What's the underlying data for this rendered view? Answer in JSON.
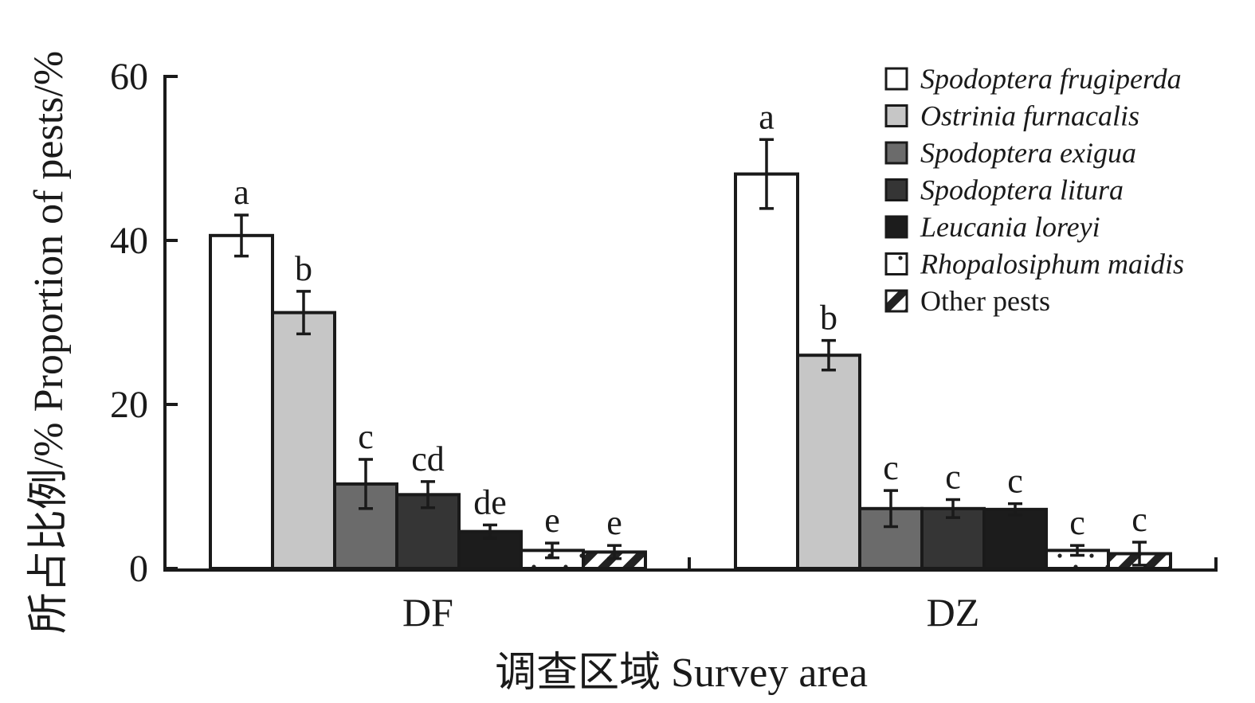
{
  "chart_data": {
    "type": "bar",
    "xlabel": "调查区域 Survey area",
    "ylabel": "所占比例/% Proportion of pests/%",
    "ylim": [
      0,
      60
    ],
    "yticks": [
      "0",
      "20",
      "40",
      "60"
    ],
    "categories": [
      "DF",
      "DZ"
    ],
    "legend_position": "top-right",
    "series": [
      {
        "name": "Spodoptera frugiperda",
        "italic": true,
        "fill": "#ffffff",
        "pattern": "none",
        "values": [
          40.6,
          48.1
        ],
        "errors": [
          2.5,
          4.2
        ],
        "letters": [
          "a",
          "a"
        ]
      },
      {
        "name": "Ostrinia furnacalis",
        "italic": true,
        "fill": "#c6c6c6",
        "pattern": "none",
        "values": [
          31.2,
          26.0
        ],
        "errors": [
          2.6,
          1.8
        ],
        "letters": [
          "b",
          "b"
        ]
      },
      {
        "name": "Spodoptera exigua",
        "italic": true,
        "fill": "#6b6b6b",
        "pattern": "none",
        "values": [
          10.3,
          7.3
        ],
        "errors": [
          3.0,
          2.2
        ],
        "letters": [
          "c",
          "c"
        ]
      },
      {
        "name": "Spodoptera litura",
        "italic": true,
        "fill": "#353535",
        "pattern": "none",
        "values": [
          9.0,
          7.3
        ],
        "errors": [
          1.6,
          1.1
        ],
        "letters": [
          "cd",
          "c"
        ]
      },
      {
        "name": "Leucania loreyi",
        "italic": true,
        "fill": "#1c1c1c",
        "pattern": "none",
        "values": [
          4.5,
          7.2
        ],
        "errors": [
          0.8,
          0.7
        ],
        "letters": [
          "de",
          "c"
        ]
      },
      {
        "name": "Rhopalosiphum maidis",
        "italic": true,
        "fill": "#ffffff",
        "pattern": "dots",
        "values": [
          2.2,
          2.2
        ],
        "errors": [
          0.9,
          0.6
        ],
        "letters": [
          "e",
          "c"
        ]
      },
      {
        "name": "Other pests",
        "italic": false,
        "fill": "#ffffff",
        "pattern": "hatch",
        "values": [
          2.0,
          1.8
        ],
        "errors": [
          0.8,
          1.4
        ],
        "letters": [
          "e",
          "c"
        ]
      }
    ]
  }
}
